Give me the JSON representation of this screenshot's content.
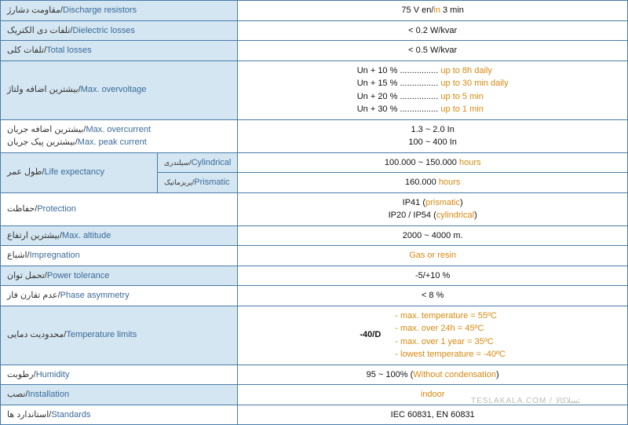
{
  "rows": {
    "discharge": {
      "fa": "مقاومت دشارژ/",
      "en": "Discharge resistors",
      "val_pre": "75 V en/",
      "val_orange": "in",
      "val_post": " 3 min"
    },
    "dielectric": {
      "fa": "تلفات دی الکتریک/",
      "en": "Dielectric losses",
      "val": "< 0.2 W/kvar"
    },
    "totalloss": {
      "fa": "تلفات کلی/",
      "en": "Total losses",
      "val": "< 0.5 W/kvar"
    },
    "overvolt": {
      "fa": "بیشترین اضافه ولتاژ/",
      "en": "Max. overvoltage",
      "l1a": "Un + 10 % ................ ",
      "l1b": "up to 8h daily",
      "l2a": "Un + 15 % ................ ",
      "l2b": "up to 30 min daily",
      "l3a": "Un + 20 % ................ ",
      "l3b": "up to 5 min",
      "l4a": "Un + 30 % ................ ",
      "l4b": "up to 1 min"
    },
    "overcur": {
      "fa": "بیشترین اضافه جریان/",
      "en": "Max. overcurrent",
      "val": "1.3 ~ 2.0 In"
    },
    "peakcur": {
      "fa": "بیشترین پیک جریان/",
      "en": "Max. peak current",
      "val": "100 ~ 400 In"
    },
    "life": {
      "fa": "طول عمر/",
      "en": "Life expectancy",
      "sub1_fa": "سیلندری/",
      "sub1_en": "Cylindrical",
      "val1_pre": "100.000 ~ 150.000 ",
      "val1_orange": "hours",
      "sub2_fa": "پریزماتیک/",
      "sub2_en": "Prismatic",
      "val2_pre": "160.000 ",
      "val2_orange": "hours"
    },
    "protection": {
      "fa": "حفاظت/",
      "en": "Protection",
      "l1_pre": "IP41 (",
      "l1_orange": "prismatic",
      "l1_post": ")",
      "l2_pre": "IP20 / IP54 (",
      "l2_orange": "cylindrical",
      "l2_post": ")"
    },
    "altitude": {
      "fa": "بیشترین ارتفاع/",
      "en": "Max. altitude",
      "val": "2000 ~ 4000 m."
    },
    "impreg": {
      "fa": "اشباع/",
      "en": "Impregnation",
      "val": "Gas or resin"
    },
    "ptol": {
      "fa": "تحمل توان/",
      "en": "Power tolerance",
      "val": "-5/+10 %"
    },
    "phase": {
      "fa": "عدم تقارن فاز/",
      "en": "Phase asymmetry",
      "val": "< 8 %"
    },
    "temp": {
      "fa": "محدودیت دمایی/",
      "en": "Temperature limits",
      "code": "-40/D",
      "l1": "- max. temperature = 55ºC",
      "l2": "- max. over 24h = 45ºC",
      "l3": "- max. over 1 year = 35ºC",
      "l4": "- lowest temperature = -40ºC"
    },
    "humidity": {
      "fa": "رطوبت/",
      "en": "Humidity",
      "val_pre": "95 ~ 100% (",
      "val_orange": "Without condensation",
      "val_post": ")"
    },
    "install": {
      "fa": "نصب/",
      "en": "Installation",
      "val": "indoor"
    },
    "standards": {
      "fa": "استاندارد ها/",
      "en": "Standards",
      "val": "IEC 60831, EN 60831"
    }
  },
  "watermark": "TESLAKALA.COM / تسلاکالا"
}
